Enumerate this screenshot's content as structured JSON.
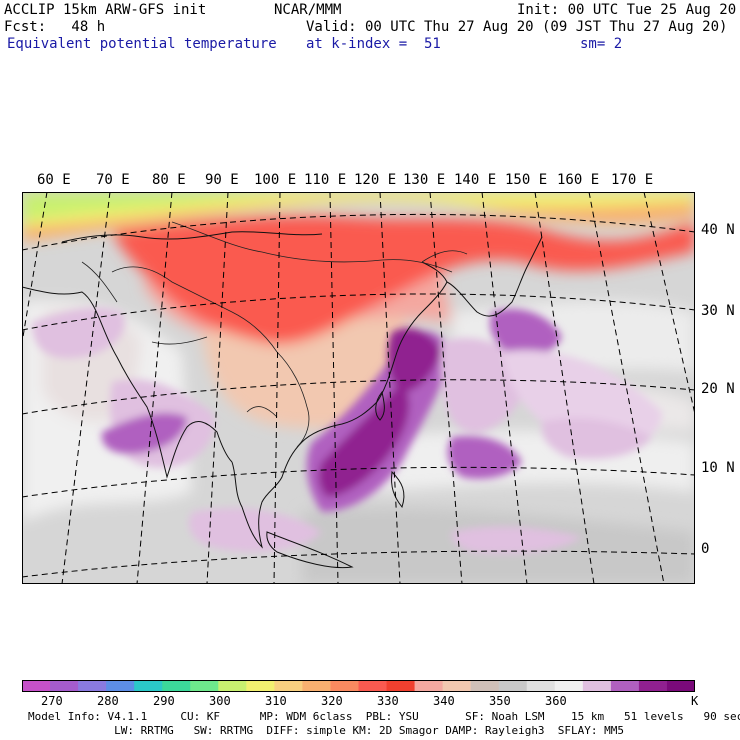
{
  "header": {
    "model": "ACCLIP 15km ARW-GFS init",
    "org": "NCAR/MMM",
    "init": "Init: 00 UTC Tue 25 Aug 20",
    "fcst": "Fcst:   48 h",
    "valid": "Valid: 00 UTC Thu 27 Aug 20 (09 JST Thu 27 Aug 20)",
    "field": "Equivalent potential temperature",
    "level": "at k-index =  51",
    "smooth": "sm= 2"
  },
  "map": {
    "lon_labels": [
      "60 E",
      "70 E",
      "80 E",
      "90 E",
      "100 E",
      "110 E",
      "120 E",
      "130 E",
      "140 E",
      "150 E",
      "160 E",
      "170 E"
    ],
    "lat_labels": [
      "40 N",
      "30 N",
      "20 N",
      "10 N",
      "0"
    ]
  },
  "colorbar": {
    "unit": "K",
    "labels": [
      "270",
      "280",
      "290",
      "300",
      "310",
      "320",
      "330",
      "340",
      "350",
      "360"
    ],
    "colors": [
      "#c651c9",
      "#a55ccc",
      "#8a7ae0",
      "#5d8ee6",
      "#2bc8c8",
      "#3cd89a",
      "#6ee88c",
      "#c8f070",
      "#f2f070",
      "#f8d080",
      "#f8b070",
      "#fa8a60",
      "#fa5a50",
      "#f0402f",
      "#f4a8a0",
      "#f2c8b0",
      "#d0c0b8",
      "#c8c8c8",
      "#e0e0e0",
      "#f0f0f0",
      "#e0c0e0",
      "#b060c0",
      "#902090",
      "#7a0a7a"
    ]
  },
  "footer": {
    "line1": "Model Info: V4.1.1     CU: KF      MP: WDM 6class  PBL: YSU       SF: Noah LSM    15 km   51 levels   90 sec",
    "line2": "             LW: RRTMG   SW: RRTMG  DIFF: simple KM: 2D Smagor DAMP: Rayleigh3  SFLAY: MM5"
  }
}
